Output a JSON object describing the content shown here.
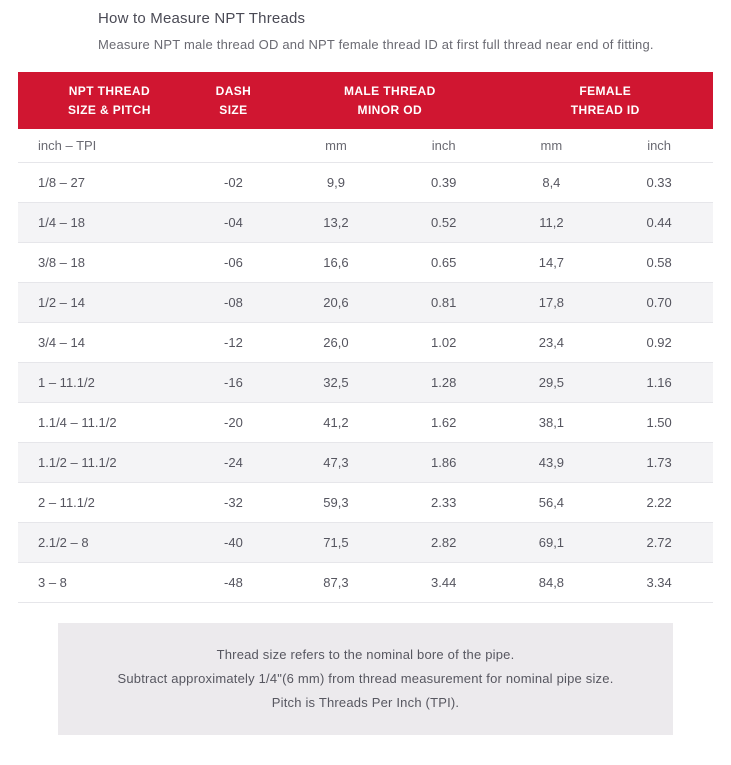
{
  "title": "How to Measure NPT Threads",
  "subtitle": "Measure NPT male thread OD and NPT female thread ID at first full thread near end of fitting.",
  "table": {
    "headers": {
      "size_l1": "NPT THREAD",
      "size_l2": "SIZE & PITCH",
      "dash_l1": "DASH",
      "dash_l2": "SIZE",
      "male_l1": "MALE THREAD",
      "male_l2": "MINOR OD",
      "female_l1": "FEMALE",
      "female_l2": "THREAD ID"
    },
    "subheaders": {
      "size": "inch – TPI",
      "dash": "",
      "male_mm": "mm",
      "male_in": "inch",
      "female_mm": "mm",
      "female_in": "inch"
    },
    "rows": [
      {
        "size": "1/8 – 27",
        "dash": "-02",
        "m_mm": "9,9",
        "m_in": "0.39",
        "f_mm": "8,4",
        "f_in": "0.33"
      },
      {
        "size": "1/4 – 18",
        "dash": "-04",
        "m_mm": "13,2",
        "m_in": "0.52",
        "f_mm": "11,2",
        "f_in": "0.44"
      },
      {
        "size": "3/8 – 18",
        "dash": "-06",
        "m_mm": "16,6",
        "m_in": "0.65",
        "f_mm": "14,7",
        "f_in": "0.58"
      },
      {
        "size": "1/2 – 14",
        "dash": "-08",
        "m_mm": "20,6",
        "m_in": "0.81",
        "f_mm": "17,8",
        "f_in": "0.70"
      },
      {
        "size": "3/4 – 14",
        "dash": "-12",
        "m_mm": "26,0",
        "m_in": "1.02",
        "f_mm": "23,4",
        "f_in": "0.92"
      },
      {
        "size": "1 – 11.1/2",
        "dash": "-16",
        "m_mm": "32,5",
        "m_in": "1.28",
        "f_mm": "29,5",
        "f_in": "1.16"
      },
      {
        "size": "1.1/4 – 11.1/2",
        "dash": "-20",
        "m_mm": "41,2",
        "m_in": "1.62",
        "f_mm": "38,1",
        "f_in": "1.50"
      },
      {
        "size": "1.1/2 – 11.1/2",
        "dash": "-24",
        "m_mm": "47,3",
        "m_in": "1.86",
        "f_mm": "43,9",
        "f_in": "1.73"
      },
      {
        "size": "2 – 11.1/2",
        "dash": "-32",
        "m_mm": "59,3",
        "m_in": "2.33",
        "f_mm": "56,4",
        "f_in": "2.22"
      },
      {
        "size": "2.1/2 – 8",
        "dash": "-40",
        "m_mm": "71,5",
        "m_in": "2.82",
        "f_mm": "69,1",
        "f_in": "2.72"
      },
      {
        "size": "3 – 8",
        "dash": "-48",
        "m_mm": "87,3",
        "m_in": "3.44",
        "f_mm": "84,8",
        "f_in": "3.34"
      }
    ]
  },
  "footnote": {
    "line1": "Thread size refers to the nominal bore of the pipe.",
    "line2": "Subtract approximately 1/4\"(6 mm) from thread measurement for nominal pipe size.",
    "line3": "Pitch is Threads Per Inch (TPI)."
  },
  "colors": {
    "header_bg": "#d01631",
    "header_text": "#ffffff",
    "body_text": "#55555f",
    "row_alt_bg": "#f4f4f6",
    "border": "#e6e6ea",
    "footnote_bg": "#eceaed"
  }
}
